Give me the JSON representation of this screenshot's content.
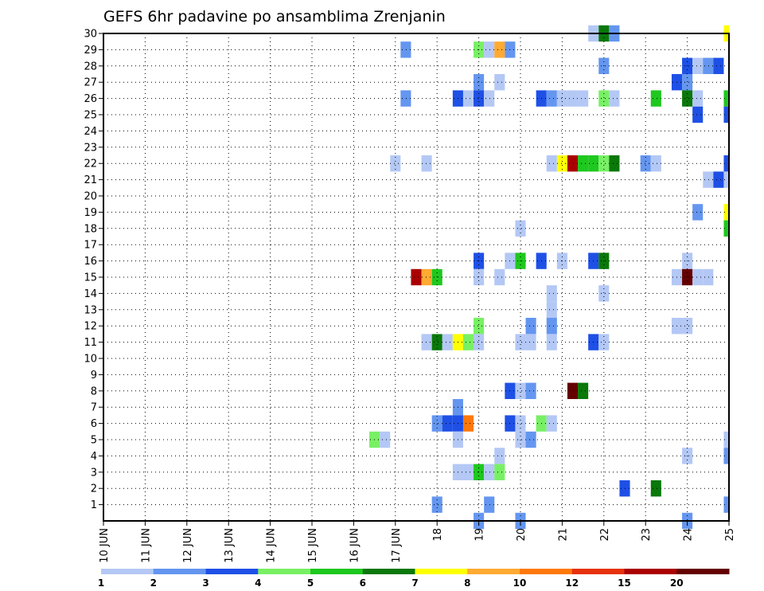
{
  "chart_data": {
    "type": "heatmap",
    "title": "GEFS 6hr padavine po ansamblima Zrenjanin",
    "y": {
      "min": 0,
      "max": 30,
      "ticks": [
        1,
        2,
        3,
        4,
        5,
        6,
        7,
        8,
        9,
        10,
        11,
        12,
        13,
        14,
        15,
        16,
        17,
        18,
        19,
        20,
        21,
        22,
        23,
        24,
        25,
        26,
        27,
        28,
        29,
        30
      ]
    },
    "x": {
      "start_hour": 0,
      "end_hour": 360,
      "tick_labels": [
        "10 JUN",
        "11 JUN",
        "12 JUN",
        "13 JUN",
        "14 JUN",
        "15 JUN",
        "16 JUN",
        "17 JUN",
        "18",
        "19",
        "20",
        "21",
        "22",
        "23",
        "24",
        "25"
      ],
      "tick_hours": [
        0,
        24,
        48,
        72,
        96,
        120,
        144,
        168,
        192,
        216,
        240,
        264,
        288,
        312,
        336,
        360
      ]
    },
    "grid": true,
    "legend": {
      "placement": "bottom",
      "labels": [
        "1",
        "2",
        "3",
        "4",
        "5",
        "6",
        "7",
        "8",
        "10",
        "12",
        "15",
        "20"
      ],
      "colors": [
        "#b4c8f5",
        "#6496f0",
        "#1e50e6",
        "#78f064",
        "#1ec81e",
        "#0a780a",
        "#ffff00",
        "#ffaa32",
        "#ff780a",
        "#e6320a",
        "#aa0000",
        "#640000"
      ]
    },
    "cells": [
      [
        282,
        30,
        1
      ],
      [
        288,
        30,
        6
      ],
      [
        294,
        30,
        2
      ],
      [
        360,
        30,
        7
      ],
      [
        174,
        29,
        2
      ],
      [
        216,
        29,
        4
      ],
      [
        222,
        29,
        1
      ],
      [
        228,
        29,
        8
      ],
      [
        234,
        29,
        2
      ],
      [
        288,
        28,
        2
      ],
      [
        336,
        28,
        3
      ],
      [
        342,
        28,
        1
      ],
      [
        348,
        28,
        2
      ],
      [
        354,
        28,
        3
      ],
      [
        216,
        27,
        2
      ],
      [
        228,
        27,
        1
      ],
      [
        330,
        27,
        3
      ],
      [
        336,
        27,
        2
      ],
      [
        174,
        26,
        2
      ],
      [
        204,
        26,
        3
      ],
      [
        210,
        26,
        1
      ],
      [
        216,
        26,
        3
      ],
      [
        222,
        26,
        1
      ],
      [
        252,
        26,
        3
      ],
      [
        258,
        26,
        2
      ],
      [
        264,
        26,
        1
      ],
      [
        270,
        26,
        1
      ],
      [
        276,
        26,
        1
      ],
      [
        288,
        26,
        4
      ],
      [
        294,
        26,
        1
      ],
      [
        318,
        26,
        5
      ],
      [
        336,
        26,
        6
      ],
      [
        342,
        26,
        1
      ],
      [
        360,
        26,
        5
      ],
      [
        342,
        25,
        3
      ],
      [
        360,
        25,
        3
      ],
      [
        168,
        22,
        1
      ],
      [
        186,
        22,
        1
      ],
      [
        258,
        22,
        1
      ],
      [
        264,
        22,
        7
      ],
      [
        270,
        22,
        11
      ],
      [
        276,
        22,
        5
      ],
      [
        282,
        22,
        5
      ],
      [
        288,
        22,
        4
      ],
      [
        294,
        22,
        6
      ],
      [
        312,
        22,
        2
      ],
      [
        318,
        22,
        1
      ],
      [
        360,
        22,
        3
      ],
      [
        348,
        21,
        1
      ],
      [
        354,
        21,
        3
      ],
      [
        360,
        21,
        1
      ],
      [
        342,
        19,
        2
      ],
      [
        360,
        19,
        7
      ],
      [
        240,
        18,
        1
      ],
      [
        360,
        18,
        5
      ],
      [
        216,
        16,
        3
      ],
      [
        234,
        16,
        1
      ],
      [
        240,
        16,
        5
      ],
      [
        252,
        16,
        3
      ],
      [
        264,
        16,
        1
      ],
      [
        282,
        16,
        3
      ],
      [
        288,
        16,
        6
      ],
      [
        336,
        16,
        1
      ],
      [
        180,
        15,
        11
      ],
      [
        186,
        15,
        8
      ],
      [
        192,
        15,
        5
      ],
      [
        216,
        15,
        1
      ],
      [
        228,
        15,
        1
      ],
      [
        330,
        15,
        1
      ],
      [
        336,
        15,
        12
      ],
      [
        342,
        15,
        1
      ],
      [
        348,
        15,
        1
      ],
      [
        258,
        14,
        1
      ],
      [
        288,
        14,
        1
      ],
      [
        258,
        13,
        1
      ],
      [
        216,
        12,
        4
      ],
      [
        246,
        12,
        2
      ],
      [
        258,
        12,
        2
      ],
      [
        330,
        12,
        1
      ],
      [
        336,
        12,
        1
      ],
      [
        186,
        11,
        1
      ],
      [
        192,
        11,
        6
      ],
      [
        198,
        11,
        1
      ],
      [
        204,
        11,
        7
      ],
      [
        210,
        11,
        4
      ],
      [
        216,
        11,
        1
      ],
      [
        240,
        11,
        1
      ],
      [
        246,
        11,
        1
      ],
      [
        258,
        11,
        1
      ],
      [
        282,
        11,
        3
      ],
      [
        288,
        11,
        1
      ],
      [
        234,
        8,
        3
      ],
      [
        240,
        8,
        1
      ],
      [
        246,
        8,
        2
      ],
      [
        270,
        8,
        12
      ],
      [
        276,
        8,
        6
      ],
      [
        204,
        7,
        2
      ],
      [
        192,
        6,
        2
      ],
      [
        198,
        6,
        3
      ],
      [
        204,
        6,
        3
      ],
      [
        210,
        6,
        9
      ],
      [
        234,
        6,
        3
      ],
      [
        240,
        6,
        1
      ],
      [
        252,
        6,
        4
      ],
      [
        258,
        6,
        1
      ],
      [
        156,
        5,
        4
      ],
      [
        162,
        5,
        1
      ],
      [
        204,
        5,
        1
      ],
      [
        240,
        5,
        1
      ],
      [
        246,
        5,
        2
      ],
      [
        360,
        5,
        1
      ],
      [
        228,
        4,
        1
      ],
      [
        336,
        4,
        1
      ],
      [
        360,
        4,
        2
      ],
      [
        204,
        3,
        1
      ],
      [
        210,
        3,
        1
      ],
      [
        216,
        3,
        5
      ],
      [
        222,
        3,
        1
      ],
      [
        228,
        3,
        4
      ],
      [
        300,
        2,
        3
      ],
      [
        318,
        2,
        6
      ],
      [
        192,
        1,
        2
      ],
      [
        222,
        1,
        2
      ],
      [
        360,
        1,
        2
      ],
      [
        216,
        0,
        2
      ],
      [
        240,
        0,
        2
      ],
      [
        336,
        0,
        2
      ]
    ]
  }
}
